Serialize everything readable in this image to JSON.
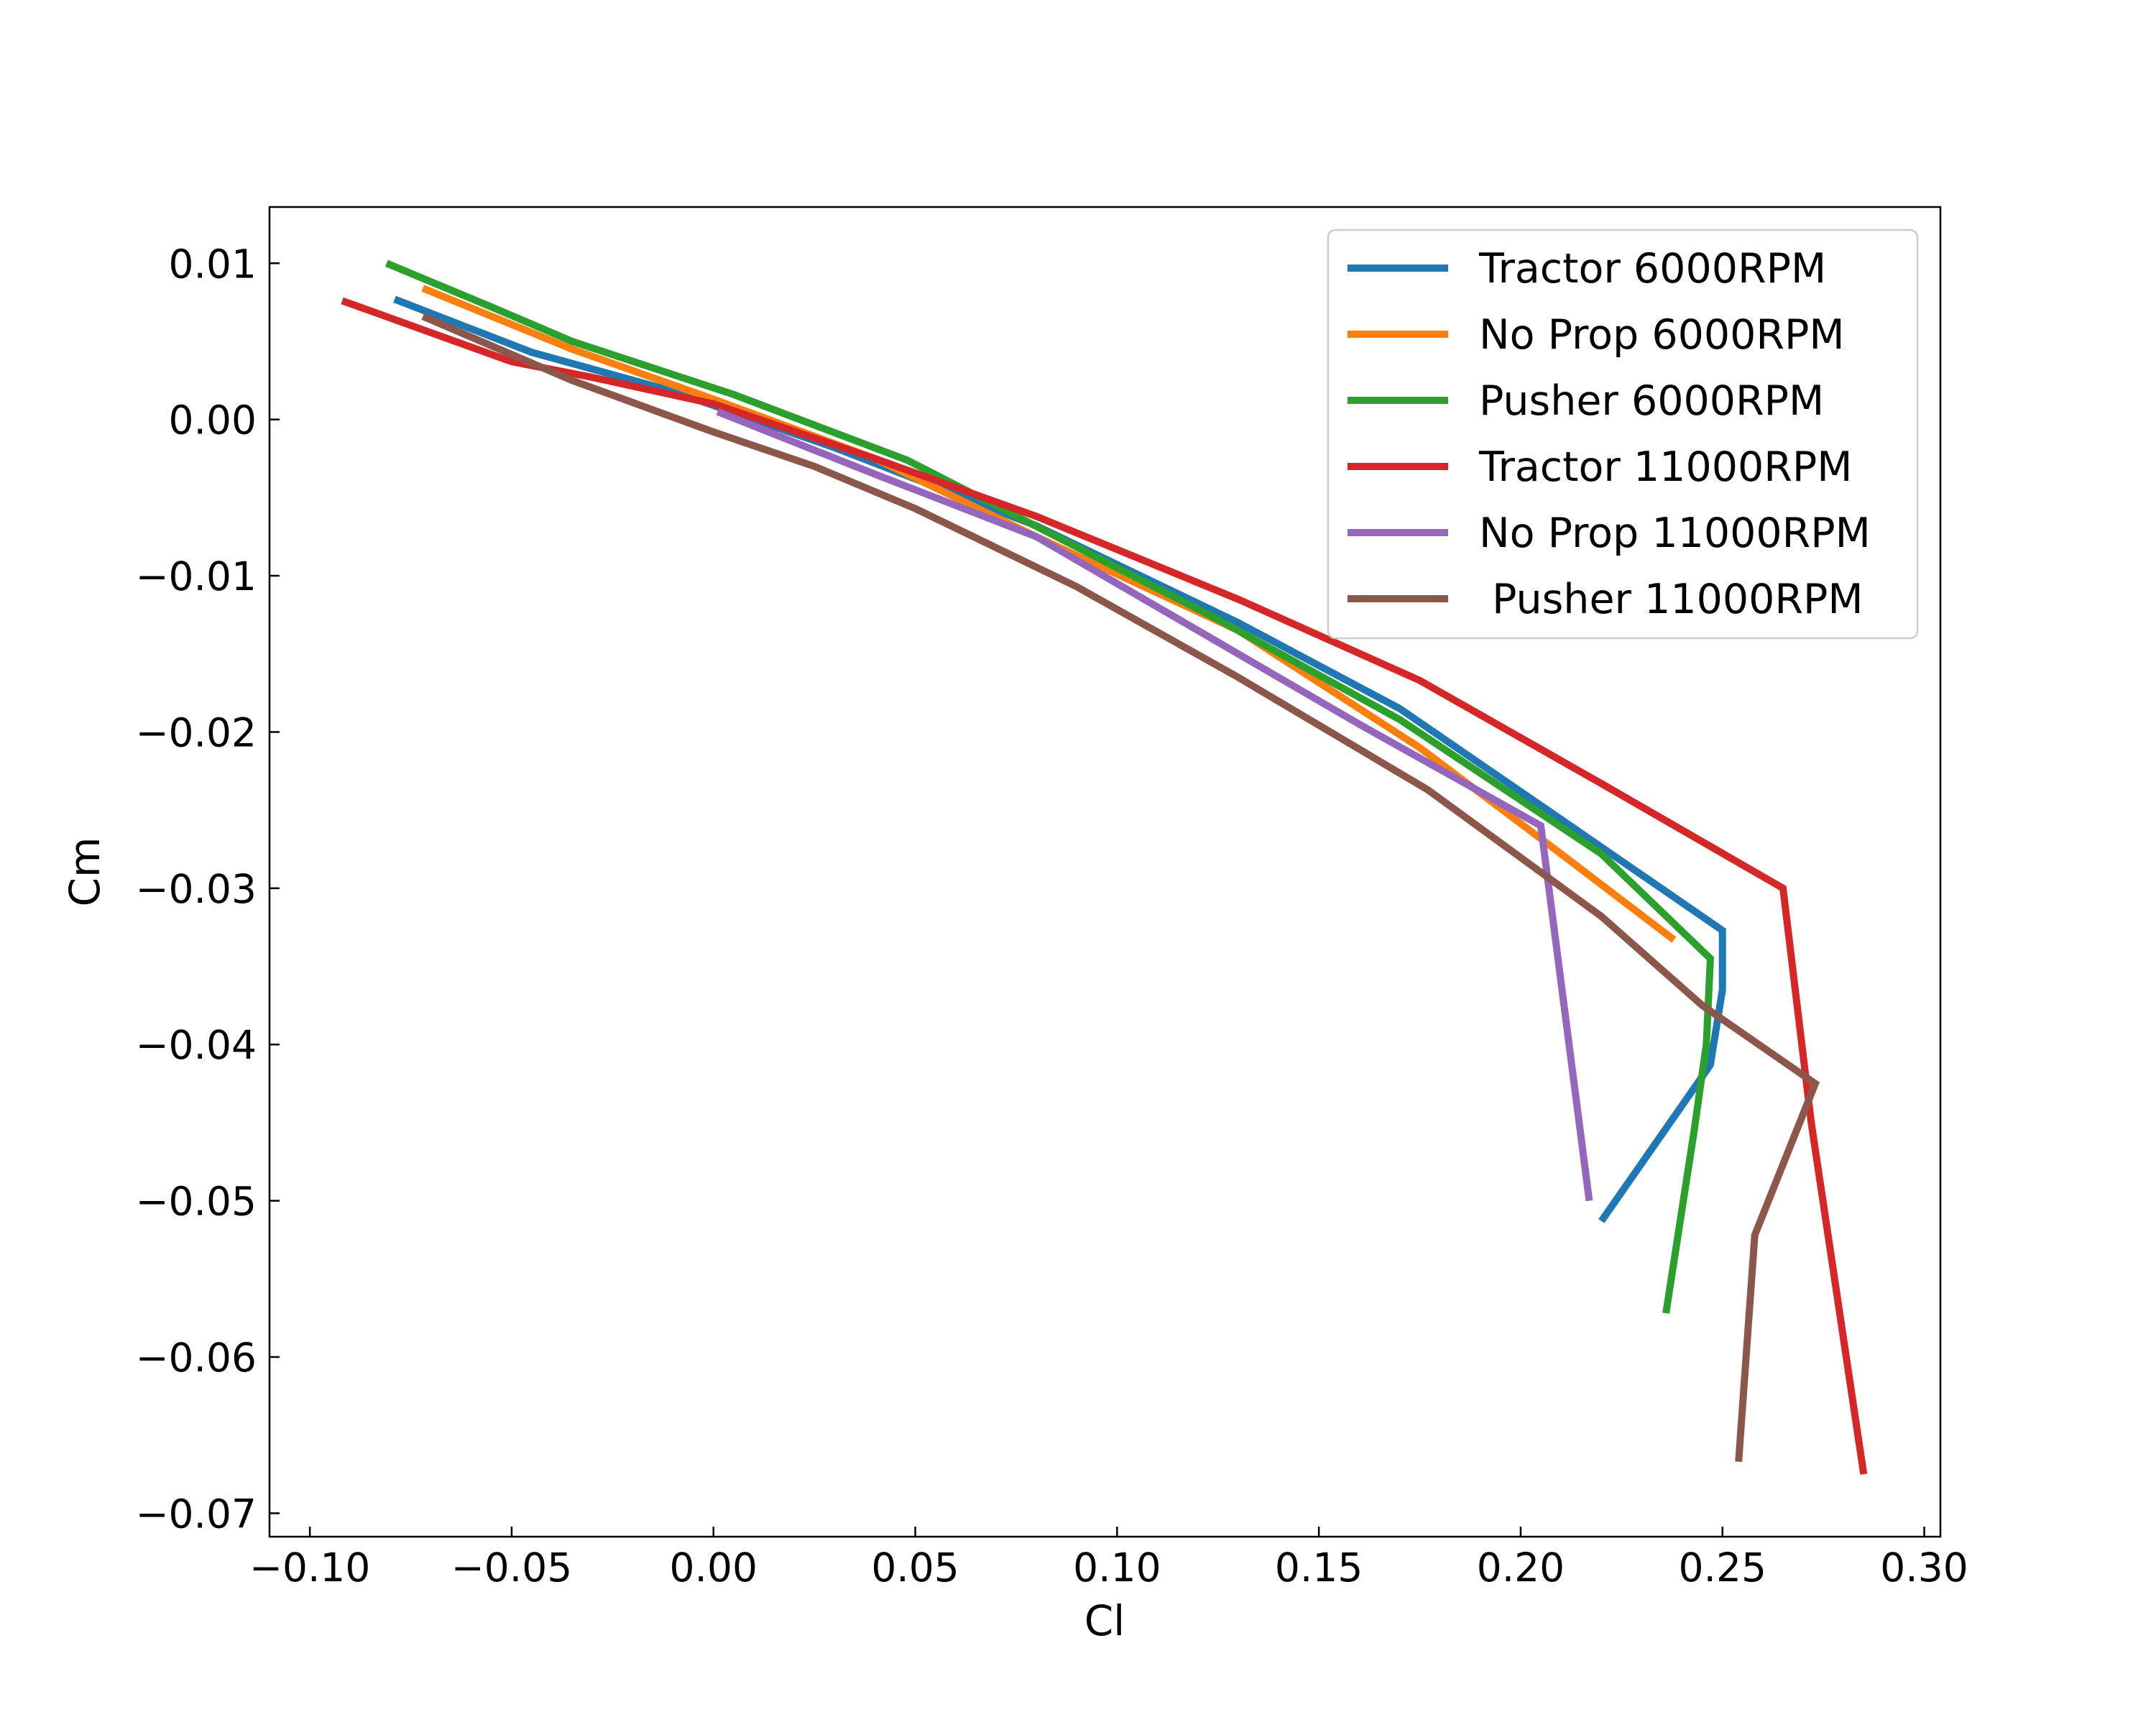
{
  "chart_data": {
    "type": "line",
    "title": "",
    "xlabel": "Cl",
    "ylabel": "Cm",
    "xlim": [
      -0.11,
      0.304
    ],
    "ylim": [
      -0.0715,
      0.0136
    ],
    "xticks": [
      -0.1,
      -0.05,
      0.0,
      0.05,
      0.1,
      0.15,
      0.2,
      0.25,
      0.3
    ],
    "xtick_labels": [
      "−0.10",
      "−0.05",
      "0.00",
      "0.05",
      "0.10",
      "0.15",
      "0.20",
      "0.25",
      "0.30"
    ],
    "yticks": [
      0.01,
      0.0,
      -0.01,
      -0.02,
      -0.03,
      -0.04,
      -0.05,
      -0.06,
      -0.07
    ],
    "ytick_labels": [
      "0.01",
      "0.00",
      "−0.01",
      "−0.02",
      "−0.03",
      "−0.04",
      "−0.05",
      "−0.06",
      "−0.07"
    ],
    "grid": false,
    "legend_position": "top-right",
    "series": [
      {
        "name": "Tractor 6000RPM",
        "color": "#1f77b4",
        "points": [
          [
            -0.079,
            0.0077
          ],
          [
            -0.045,
            0.0043
          ],
          [
            -0.01,
            0.0018
          ],
          [
            0.03,
            -0.0018
          ],
          [
            0.08,
            -0.0068
          ],
          [
            0.13,
            -0.013
          ],
          [
            0.17,
            -0.0185
          ],
          [
            0.205,
            -0.0247
          ],
          [
            0.25,
            -0.0327
          ],
          [
            0.25,
            -0.0365
          ],
          [
            0.247,
            -0.0413
          ],
          [
            0.22,
            -0.0513
          ]
        ]
      },
      {
        "name": "No Prop 6000RPM",
        "color": "#ff7f0e",
        "points": [
          [
            -0.072,
            0.0084
          ],
          [
            -0.035,
            0.0045
          ],
          [
            0.0,
            0.0013
          ],
          [
            0.04,
            -0.0025
          ],
          [
            0.08,
            -0.0075
          ],
          [
            0.13,
            -0.0135
          ],
          [
            0.175,
            -0.021
          ],
          [
            0.21,
            -0.0278
          ],
          [
            0.238,
            -0.0333
          ]
        ]
      },
      {
        "name": "Pusher 6000RPM",
        "color": "#2ca02c",
        "points": [
          [
            -0.081,
            0.01
          ],
          [
            -0.055,
            0.0072
          ],
          [
            -0.035,
            0.005
          ],
          [
            0.005,
            0.0016
          ],
          [
            0.048,
            -0.0026
          ],
          [
            0.085,
            -0.0075
          ],
          [
            0.125,
            -0.0128
          ],
          [
            0.17,
            -0.0192
          ],
          [
            0.22,
            -0.0278
          ],
          [
            0.247,
            -0.0345
          ],
          [
            0.246,
            -0.04
          ],
          [
            0.243,
            -0.0455
          ],
          [
            0.236,
            -0.0572
          ]
        ]
      },
      {
        "name": "Tractor 11000RPM",
        "color": "#d62728",
        "points": [
          [
            -0.092,
            0.0076
          ],
          [
            -0.05,
            0.0037
          ],
          [
            -0.03,
            0.0027
          ],
          [
            0.0,
            0.001
          ],
          [
            0.04,
            -0.0025
          ],
          [
            0.08,
            -0.0062
          ],
          [
            0.13,
            -0.0115
          ],
          [
            0.175,
            -0.0167
          ],
          [
            0.22,
            -0.0233
          ],
          [
            0.265,
            -0.03
          ],
          [
            0.272,
            -0.045
          ],
          [
            0.285,
            -0.0675
          ]
        ]
      },
      {
        "name": "No Prop 11000RPM",
        "color": "#9467bd",
        "points": [
          [
            0.001,
            0.0005
          ],
          [
            0.04,
            -0.0035
          ],
          [
            0.08,
            -0.0075
          ],
          [
            0.12,
            -0.0135
          ],
          [
            0.16,
            -0.0195
          ],
          [
            0.205,
            -0.026
          ],
          [
            0.217,
            -0.05
          ]
        ]
      },
      {
        "name": " Pusher 11000RPM",
        "color": "#8c564b",
        "points": [
          [
            -0.072,
            0.0066
          ],
          [
            -0.035,
            0.0025
          ],
          [
            0.0,
            -0.0008
          ],
          [
            0.025,
            -0.003
          ],
          [
            0.05,
            -0.0057
          ],
          [
            0.09,
            -0.0107
          ],
          [
            0.13,
            -0.0165
          ],
          [
            0.177,
            -0.0237
          ],
          [
            0.22,
            -0.0318
          ],
          [
            0.245,
            -0.0375
          ],
          [
            0.273,
            -0.0425
          ],
          [
            0.258,
            -0.0522
          ],
          [
            0.254,
            -0.0667
          ]
        ]
      }
    ]
  }
}
